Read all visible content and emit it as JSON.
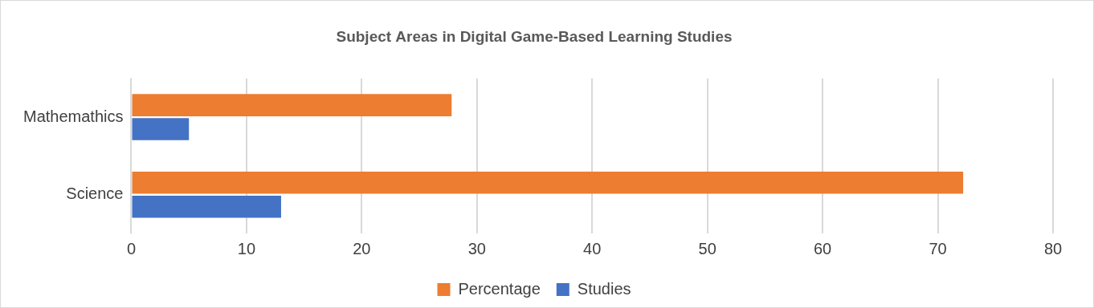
{
  "chart_data": {
    "type": "bar",
    "orientation": "horizontal",
    "title": "Subject Areas in Digital Game-Based Learning Studies",
    "categories": [
      "Mathemathics",
      "Science"
    ],
    "series": [
      {
        "name": "Percentage",
        "color": "#ed7d31",
        "values": [
          27.8,
          72.2
        ]
      },
      {
        "name": "Studies",
        "color": "#4472c4",
        "values": [
          5,
          13
        ]
      }
    ],
    "xlim": [
      0,
      80
    ],
    "xticks": [
      0,
      10,
      20,
      30,
      40,
      50,
      60,
      70,
      80
    ],
    "grid": true,
    "legend": "bottom"
  }
}
